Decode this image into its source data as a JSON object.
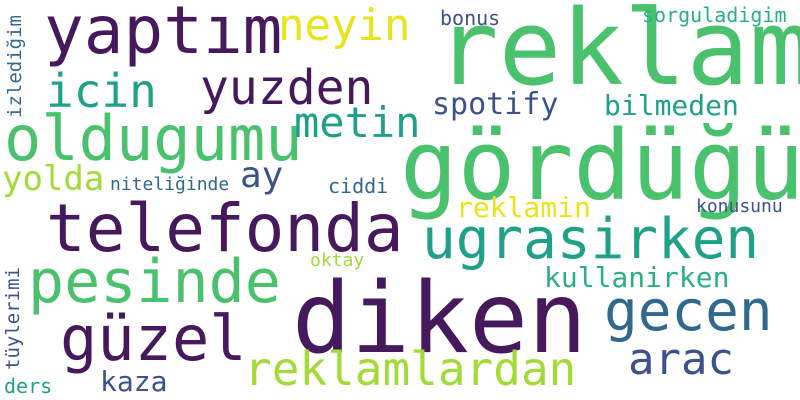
{
  "words": [
    {
      "text": "reklam",
      "color": "#4ac16d"
    },
    {
      "text": "gördüğüm",
      "color": "#4ac16d"
    },
    {
      "text": "diken",
      "color": "#46185c"
    },
    {
      "text": "telefonda",
      "color": "#46185c"
    },
    {
      "text": "yaptım",
      "color": "#46185c"
    },
    {
      "text": "oldugumu",
      "color": "#4ac16d"
    },
    {
      "text": "ugrasirken",
      "color": "#1fa188"
    },
    {
      "text": "pesinde",
      "color": "#4ac16d"
    },
    {
      "text": "gecen",
      "color": "#31688e"
    },
    {
      "text": "güzel",
      "color": "#46185c"
    },
    {
      "text": "yuzden",
      "color": "#46185c"
    },
    {
      "text": "icin",
      "color": "#1fa188"
    },
    {
      "text": "neyin",
      "color": "#e7e419"
    },
    {
      "text": "metin",
      "color": "#1fa188"
    },
    {
      "text": "reklamlardan",
      "color": "#a2da37"
    },
    {
      "text": "arac",
      "color": "#3b528b"
    },
    {
      "text": "spotify",
      "color": "#3b528b"
    },
    {
      "text": "bilmeden",
      "color": "#1fa188"
    },
    {
      "text": "yolda",
      "color": "#a2da37"
    },
    {
      "text": "ay",
      "color": "#3b528b"
    },
    {
      "text": "reklamin",
      "color": "#e7e419"
    },
    {
      "text": "kullanirken",
      "color": "#2ab07f"
    },
    {
      "text": "kaza",
      "color": "#3b528b"
    },
    {
      "text": "sorguladigim",
      "color": "#2ab07f"
    },
    {
      "text": "bonus",
      "color": "#3b528b"
    },
    {
      "text": "niteliğinde",
      "color": "#31688e"
    },
    {
      "text": "ciddi",
      "color": "#31688e"
    },
    {
      "text": "konusunu",
      "color": "#3b528b"
    },
    {
      "text": "oktay",
      "color": "#a2da37"
    },
    {
      "text": "ders",
      "color": "#1fa188"
    },
    {
      "text": "izlediğim",
      "color": "#31688e"
    },
    {
      "text": "tüylerimi",
      "color": "#3b528b"
    }
  ]
}
